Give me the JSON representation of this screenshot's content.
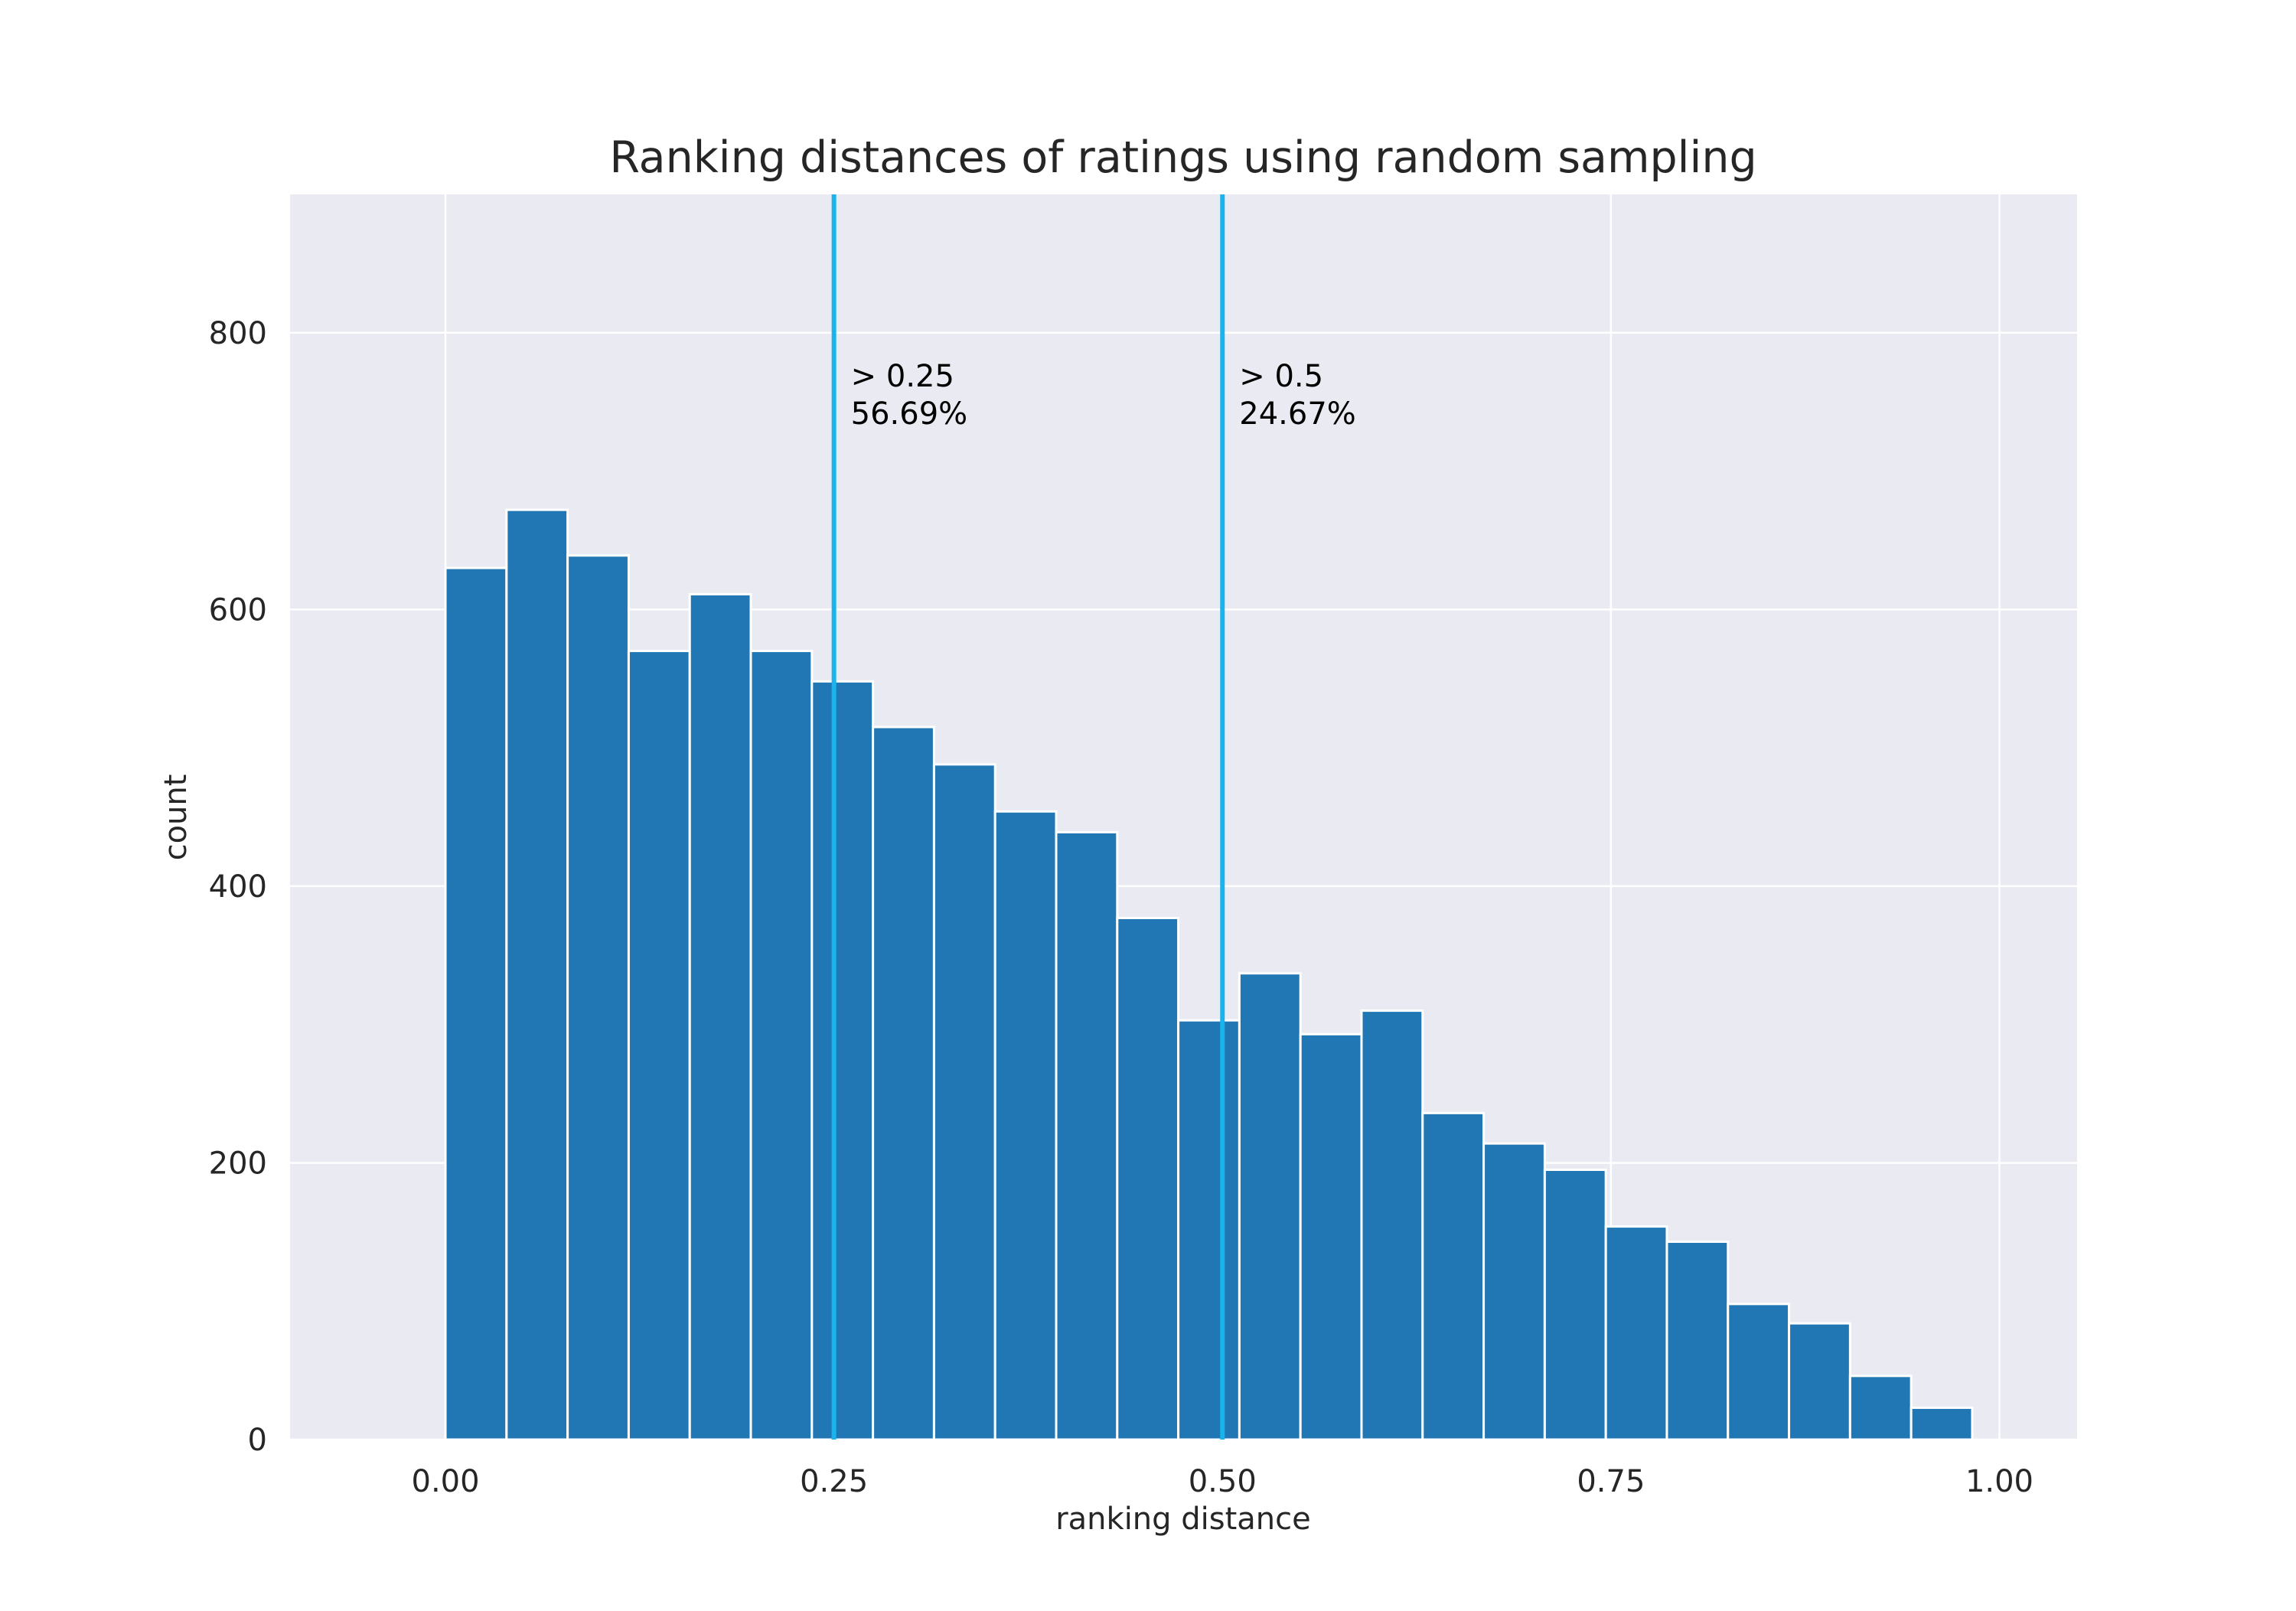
{
  "chart_data": {
    "type": "bar",
    "subtype": "histogram",
    "title": "Ranking distances of ratings using random sampling",
    "xlabel": "ranking distance",
    "ylabel": "count",
    "xlim": [
      -0.1,
      1.05
    ],
    "ylim": [
      0,
      900
    ],
    "xticks": [
      0.0,
      0.25,
      0.5,
      0.75,
      1.0
    ],
    "xtick_labels": [
      "0.00",
      "0.25",
      "0.50",
      "0.75",
      "1.00"
    ],
    "yticks": [
      0,
      200,
      400,
      600,
      800
    ],
    "ytick_labels": [
      "0",
      "200",
      "400",
      "600",
      "800"
    ],
    "grid": true,
    "legend": "none",
    "bin_edges": [
      0.0,
      0.0393,
      0.0786,
      0.1179,
      0.1572,
      0.1965,
      0.2358,
      0.2751,
      0.3144,
      0.3537,
      0.393,
      0.4323,
      0.4716,
      0.5109,
      0.5502,
      0.5895,
      0.6288,
      0.6681,
      0.7074,
      0.7467,
      0.786,
      0.8253,
      0.8646,
      0.9039,
      0.9432,
      0.9825
    ],
    "values": [
      630,
      672,
      639,
      570,
      611,
      570,
      548,
      515,
      488,
      454,
      439,
      377,
      303,
      337,
      293,
      310,
      236,
      214,
      195,
      154,
      143,
      98,
      84,
      46,
      23
    ],
    "vlines": [
      {
        "x": 0.25,
        "label_line1": "> 0.25",
        "label_line2": "56.69%",
        "label_y": 770
      },
      {
        "x": 0.5,
        "label_line1": "> 0.5",
        "label_line2": "24.67%",
        "label_y": 770
      }
    ],
    "colors": {
      "bar": "#2077b4",
      "bar_edge": "#ffffff",
      "vline": "#19b4ed",
      "plot_bg": "#eaeaf2",
      "grid": "#ffffff",
      "text": "#262626"
    }
  }
}
